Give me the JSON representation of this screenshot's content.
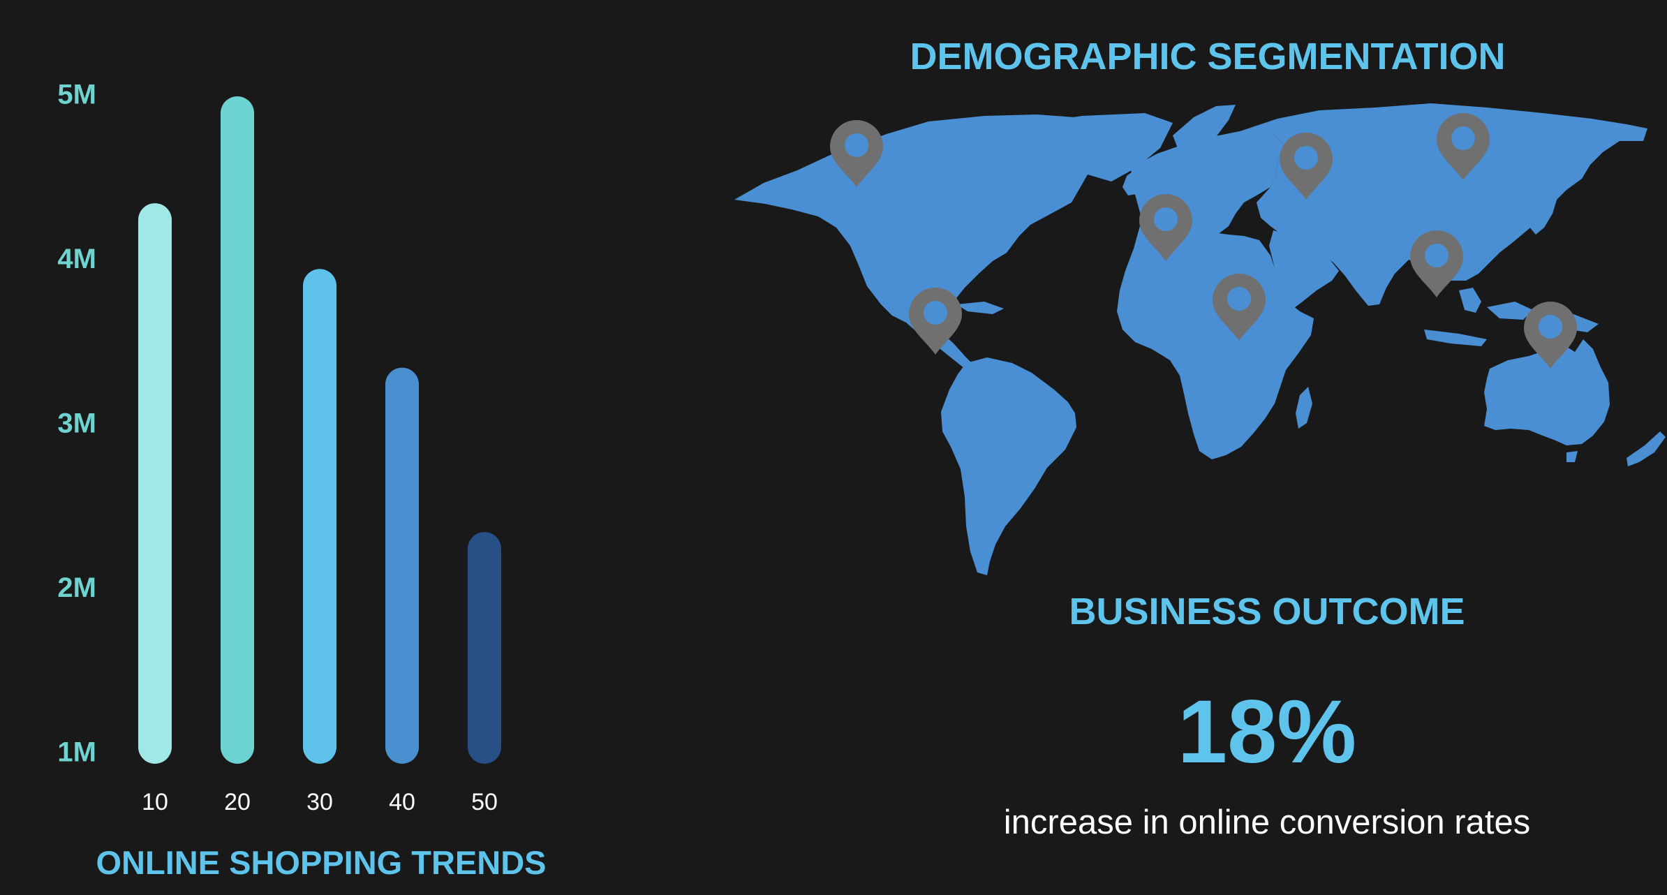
{
  "chart_data": {
    "type": "bar",
    "title": "ONLINE SHOPPING TRENDS",
    "categories": [
      "10",
      "20",
      "30",
      "40",
      "50"
    ],
    "values": [
      4.35,
      5.0,
      3.95,
      3.35,
      2.35
    ],
    "ylim": [
      1,
      5
    ],
    "yticks": [
      {
        "value": 5,
        "label": "5M"
      },
      {
        "value": 4,
        "label": "4M"
      },
      {
        "value": 3,
        "label": "3M"
      },
      {
        "value": 2,
        "label": "2M"
      },
      {
        "value": 1,
        "label": "1M"
      }
    ],
    "colors": [
      "#a0e8e6",
      "#6dd3d1",
      "#5ec2ea",
      "#4a8fd0",
      "#284f86"
    ],
    "grid": false,
    "legend": "none"
  },
  "map": {
    "title": "DEMOGRAPHIC SEGMENTATION",
    "land_color": "#4a8fd4",
    "pin_color": "#707070",
    "pin_icon": "map-pin-icon",
    "pin_count": 8
  },
  "outcome": {
    "title": "BUSINESS OUTCOME",
    "value": "18%",
    "caption": "increase in online conversion rates"
  }
}
